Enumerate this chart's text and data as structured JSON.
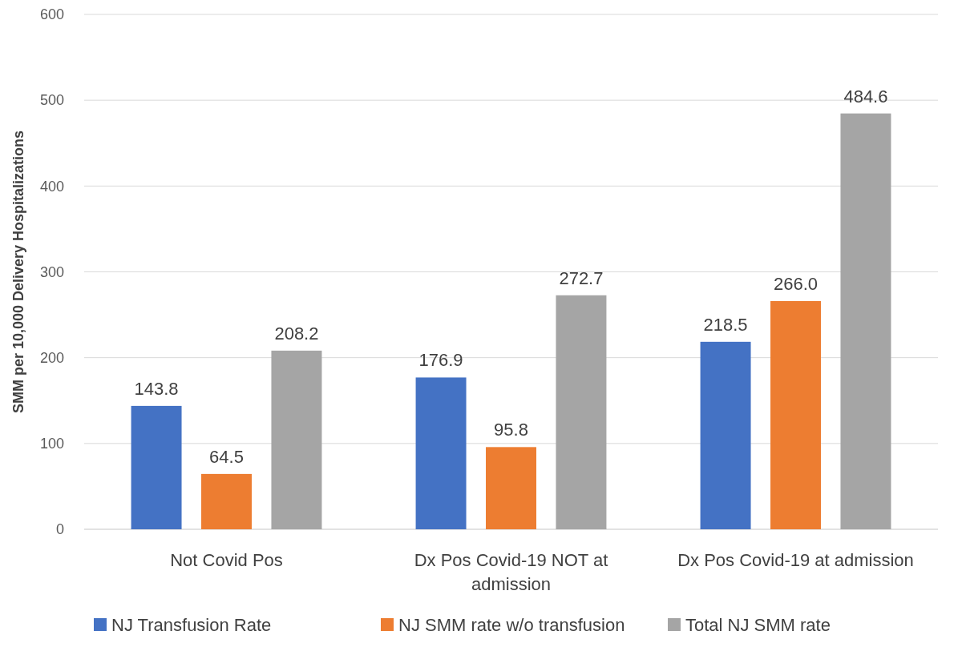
{
  "chart_data": {
    "type": "bar",
    "ylabel": "SMM per 10,000 Delivery Hospitalizations",
    "categories": [
      "Not Covid Pos",
      "Dx Pos Covid-19 NOT at admission",
      "Dx Pos Covid-19 at admission"
    ],
    "series": [
      {
        "name": "NJ Transfusion Rate",
        "color": "#4472c4",
        "values": [
          143.8,
          176.9,
          218.5
        ],
        "value_labels": [
          "143.8",
          "176.9",
          "218.5"
        ]
      },
      {
        "name": "NJ SMM rate w/o transfusion",
        "color": "#ed7d31",
        "values": [
          64.5,
          95.8,
          266.0
        ],
        "value_labels": [
          "64.5",
          "95.8",
          "266.0"
        ]
      },
      {
        "name": "Total NJ SMM rate",
        "color": "#a5a5a5",
        "values": [
          208.2,
          272.7,
          484.6
        ],
        "value_labels": [
          "208.2",
          "272.7",
          "484.6"
        ]
      }
    ],
    "ylim": [
      0,
      600
    ],
    "yticks": [
      0,
      100,
      200,
      300,
      400,
      500,
      600
    ],
    "grid": "y",
    "legend": "bottom"
  }
}
